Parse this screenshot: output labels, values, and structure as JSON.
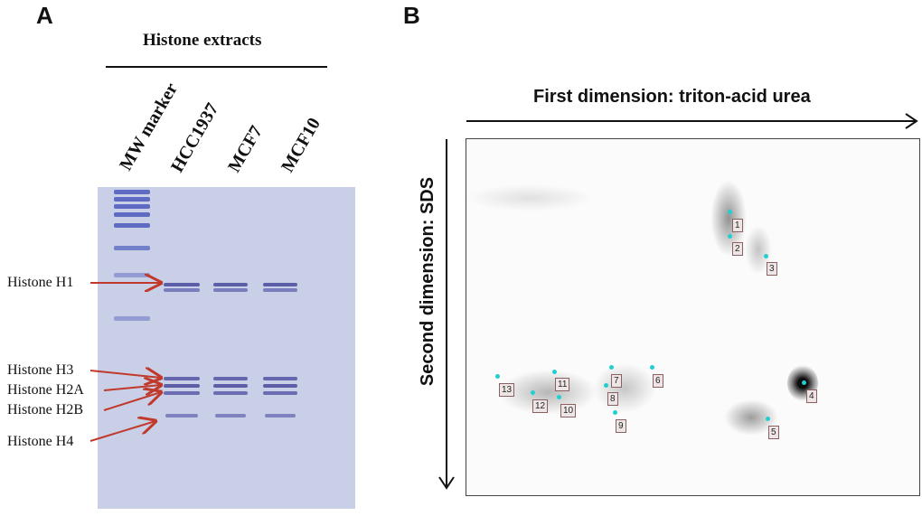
{
  "panel_a": {
    "letter": "A",
    "title": "Histone extracts",
    "lanes": [
      "MW marker",
      "HCC1937",
      "MCF7",
      "MCF10"
    ],
    "histones": [
      "Histone H1",
      "Histone H3",
      "Histone H2A",
      "Histone H2B",
      "Histone H4"
    ],
    "colors": {
      "gel": "#c9cfe6",
      "band": "#5c5fa8",
      "marker": "#5d6cc2",
      "arrow": "#c0392b"
    }
  },
  "panel_b": {
    "letter": "B",
    "x_axis_title": "First dimension: triton-acid urea",
    "y_axis_title": "Second dimension: SDS",
    "spot_labels": [
      "1",
      "2",
      "3",
      "4",
      "5",
      "6",
      "7",
      "8",
      "9",
      "10",
      "11",
      "12",
      "13"
    ],
    "colors": {
      "marker_dot": "#20d0d0",
      "label_bg": "#eee6e6"
    }
  }
}
